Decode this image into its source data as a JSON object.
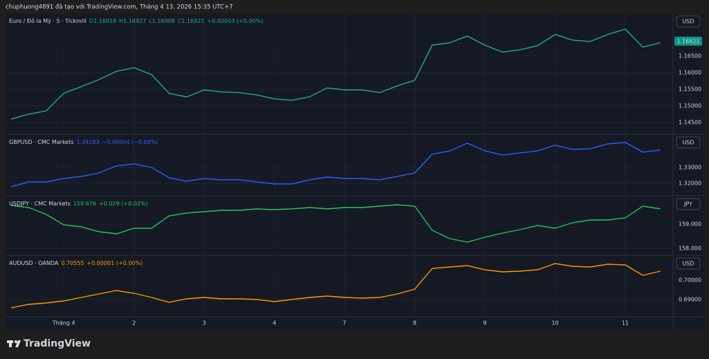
{
  "header": {
    "title": "chuphuong4891 đã tạo với TradingView.com, Tháng 4 13, 2026 15:35 UTC+7"
  },
  "footer": {
    "brand": "TradingView"
  },
  "time_axis": {
    "xlim": [
      -0.83,
      8.68
    ],
    "xticks": [
      {
        "value": 0,
        "label": "Tháng 4"
      },
      {
        "value": 1,
        "label": "2"
      },
      {
        "value": 2,
        "label": "3"
      },
      {
        "value": 3,
        "label": "4"
      },
      {
        "value": 4,
        "label": "7"
      },
      {
        "value": 5,
        "label": "8"
      },
      {
        "value": 6,
        "label": "9"
      },
      {
        "value": 7,
        "label": "10"
      },
      {
        "value": 8,
        "label": "11"
      }
    ],
    "x": [
      -0.75,
      -0.5,
      -0.25,
      0,
      0.25,
      0.5,
      0.75,
      1,
      1.25,
      1.5,
      1.75,
      2,
      2.25,
      2.5,
      2.75,
      3,
      3.25,
      3.5,
      3.75,
      4,
      4.25,
      4.5,
      4.75,
      5,
      5.25,
      5.5,
      5.75,
      6,
      6.25,
      6.5,
      6.75,
      7,
      7.25,
      7.5,
      7.75,
      8,
      8.25,
      8.5
    ]
  },
  "chart_data": [
    {
      "type": "line",
      "title": "Euro / Đô la Mỹ · 5 · Tickmill",
      "quote": [
        "O1.16918",
        "H1.16927",
        "L1.16908",
        "C1.16921",
        "+0.00003 (+0.00%)"
      ],
      "price_badge": "1.16921",
      "currency": "USD",
      "color": "#26a69a",
      "values": [
        1.146,
        1.1475,
        1.1485,
        1.1538,
        1.1558,
        1.1579,
        1.1604,
        1.1615,
        1.1594,
        1.1538,
        1.1527,
        1.1548,
        1.1542,
        1.154,
        1.1533,
        1.1521,
        1.1517,
        1.1527,
        1.1554,
        1.1548,
        1.1548,
        1.154,
        1.156,
        1.1577,
        1.1683,
        1.169,
        1.171,
        1.1683,
        1.1662,
        1.1669,
        1.1681,
        1.1715,
        1.1698,
        1.1694,
        1.1715,
        1.1731,
        1.1677,
        1.169
      ],
      "ylim": [
        1.14167,
        1.17771
      ],
      "yticks": [
        {
          "value": 1.145,
          "label": "1.14500"
        },
        {
          "value": 1.15,
          "label": "1.15000"
        },
        {
          "value": 1.155,
          "label": "1.15500"
        },
        {
          "value": 1.16,
          "label": "1.16000"
        },
        {
          "value": 1.165,
          "label": "1.16500"
        }
      ]
    },
    {
      "type": "line",
      "title": "GBPUSD · CMC Markets",
      "quote": [
        "1.34283",
        "−0.00004 (−0.00%)"
      ],
      "currency": "USD",
      "color": "#2962ff",
      "values": [
        1.3178,
        1.3209,
        1.3209,
        1.323,
        1.3243,
        1.3265,
        1.3309,
        1.3322,
        1.33,
        1.3235,
        1.3213,
        1.323,
        1.3222,
        1.3222,
        1.3209,
        1.3196,
        1.3196,
        1.3222,
        1.3239,
        1.323,
        1.323,
        1.3222,
        1.3243,
        1.3265,
        1.3383,
        1.3404,
        1.3452,
        1.3404,
        1.3378,
        1.3391,
        1.3404,
        1.3439,
        1.3413,
        1.3417,
        1.3448,
        1.3457,
        1.3396,
        1.3409
      ],
      "ylim": [
        1.31261,
        1.35043
      ],
      "yticks": [
        {
          "value": 1.32,
          "label": "1.32000"
        },
        {
          "value": 1.33,
          "label": "1.33000"
        }
      ]
    },
    {
      "type": "line",
      "title": "USDJPY · CMC Markets",
      "quote": [
        "159.676",
        "+0.029 (+0.02%)"
      ],
      "currency": "JPY",
      "color": "#22c55e",
      "values": [
        159.771,
        159.686,
        159.4,
        158.971,
        158.886,
        158.686,
        158.6,
        158.829,
        158.829,
        159.343,
        159.457,
        159.514,
        159.571,
        159.571,
        159.629,
        159.6,
        159.629,
        159.686,
        159.629,
        159.686,
        159.686,
        159.743,
        159.8,
        159.743,
        158.743,
        158.4,
        158.257,
        158.457,
        158.629,
        158.771,
        158.943,
        158.829,
        159.057,
        159.171,
        159.171,
        159.257,
        159.743,
        159.629
      ],
      "ylim": [
        157.743,
        160.143
      ],
      "yticks": [
        {
          "value": 159,
          "label": "159.000"
        },
        {
          "value": 158,
          "label": "158.000"
        }
      ]
    },
    {
      "type": "line",
      "title": "AUDUSD · OANDA",
      "quote": [
        "0.70555",
        "+0.00001 (+0.00%)"
      ],
      "currency": "USD",
      "color": "#ff9800",
      "values": [
        0.68571,
        0.6875,
        0.68821,
        0.68929,
        0.69107,
        0.69286,
        0.69464,
        0.69321,
        0.69107,
        0.68857,
        0.69036,
        0.69107,
        0.69036,
        0.69036,
        0.69,
        0.68893,
        0.69,
        0.69107,
        0.69179,
        0.69107,
        0.69071,
        0.69107,
        0.69286,
        0.69536,
        0.70607,
        0.70679,
        0.7075,
        0.70536,
        0.70429,
        0.70464,
        0.70536,
        0.70857,
        0.70714,
        0.70679,
        0.70821,
        0.70786,
        0.7025,
        0.70464
      ],
      "ylim": [
        0.68107,
        0.7125
      ],
      "yticks": [
        {
          "value": 0.7,
          "label": "0.70000"
        },
        {
          "value": 0.69,
          "label": "0.69000"
        }
      ]
    }
  ]
}
